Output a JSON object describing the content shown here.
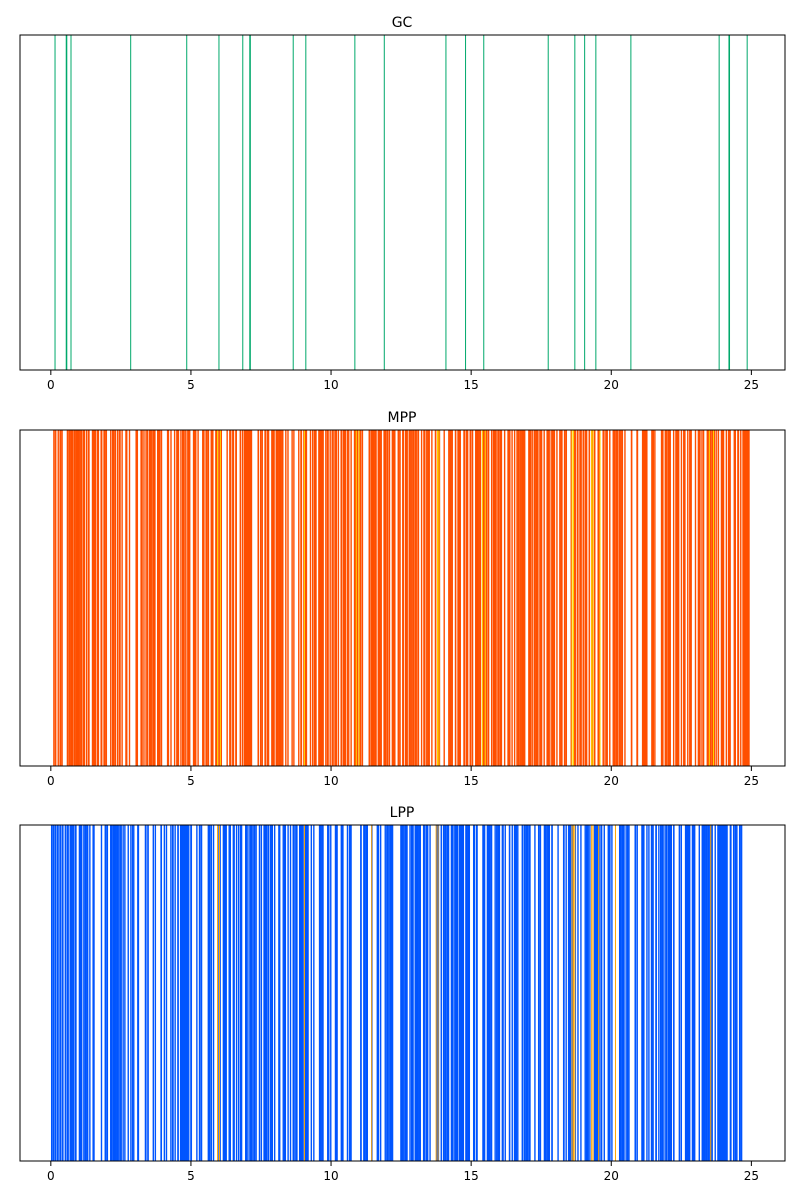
{
  "chart_data": [
    {
      "type": "event-raster",
      "title": "GC",
      "xlabel": "",
      "ylabel": "",
      "xlim": [
        -1.1,
        26.2
      ],
      "xticks": [
        0,
        5,
        10,
        15,
        20,
        25
      ],
      "ytick_labels": "none",
      "grid": false,
      "colors": {
        "event": "#00a86b"
      },
      "series": [
        {
          "color": "#00a86b",
          "weight": 1,
          "x": [
            0.15,
            0.55,
            0.57,
            0.72,
            2.85,
            4.85,
            6.0,
            6.85,
            7.1,
            7.12,
            8.65,
            9.1,
            10.85,
            11.9,
            14.1,
            14.8,
            15.45,
            17.75,
            18.7,
            19.05,
            19.45,
            20.7,
            23.85,
            24.2,
            24.22,
            24.85
          ]
        }
      ]
    },
    {
      "type": "event-raster",
      "title": "MPP",
      "xlabel": "",
      "ylabel": "",
      "xlim": [
        -1.1,
        26.2
      ],
      "xticks": [
        0,
        5,
        10,
        15,
        20,
        25
      ],
      "ytick_labels": "none",
      "grid": false,
      "colors": {
        "primary": "#ff4f00",
        "secondary": "#ffd700"
      },
      "dense_range": [
        0.1,
        25.0
      ],
      "series": [
        {
          "color": "#ff4f00",
          "count": 520,
          "seed": 11
        },
        {
          "color": "#ffd700",
          "x": [
            5.95,
            6.05,
            9.05,
            10.9,
            11.0,
            13.8,
            13.85,
            15.4,
            15.5,
            18.6,
            18.65,
            19.3,
            19.35,
            19.6,
            23.5,
            23.65
          ]
        }
      ]
    },
    {
      "type": "event-raster",
      "title": "LPP",
      "xlabel": "",
      "ylabel": "",
      "xlim": [
        -1.1,
        26.2
      ],
      "xticks": [
        0,
        5,
        10,
        15,
        20,
        25
      ],
      "ytick_labels": "none",
      "grid": false,
      "colors": {
        "primary": "#0055ff",
        "secondary": "#ffa500"
      },
      "dense_range": [
        0.0,
        25.0
      ],
      "series": [
        {
          "color": "#0055ff",
          "count": 470,
          "seed": 29
        },
        {
          "color": "#ffa500",
          "x": [
            5.95,
            6.02,
            9.05,
            11.45,
            13.75,
            13.82,
            18.6,
            18.65,
            18.7,
            19.3,
            19.35,
            19.55,
            20.15,
            23.55
          ]
        }
      ]
    }
  ]
}
